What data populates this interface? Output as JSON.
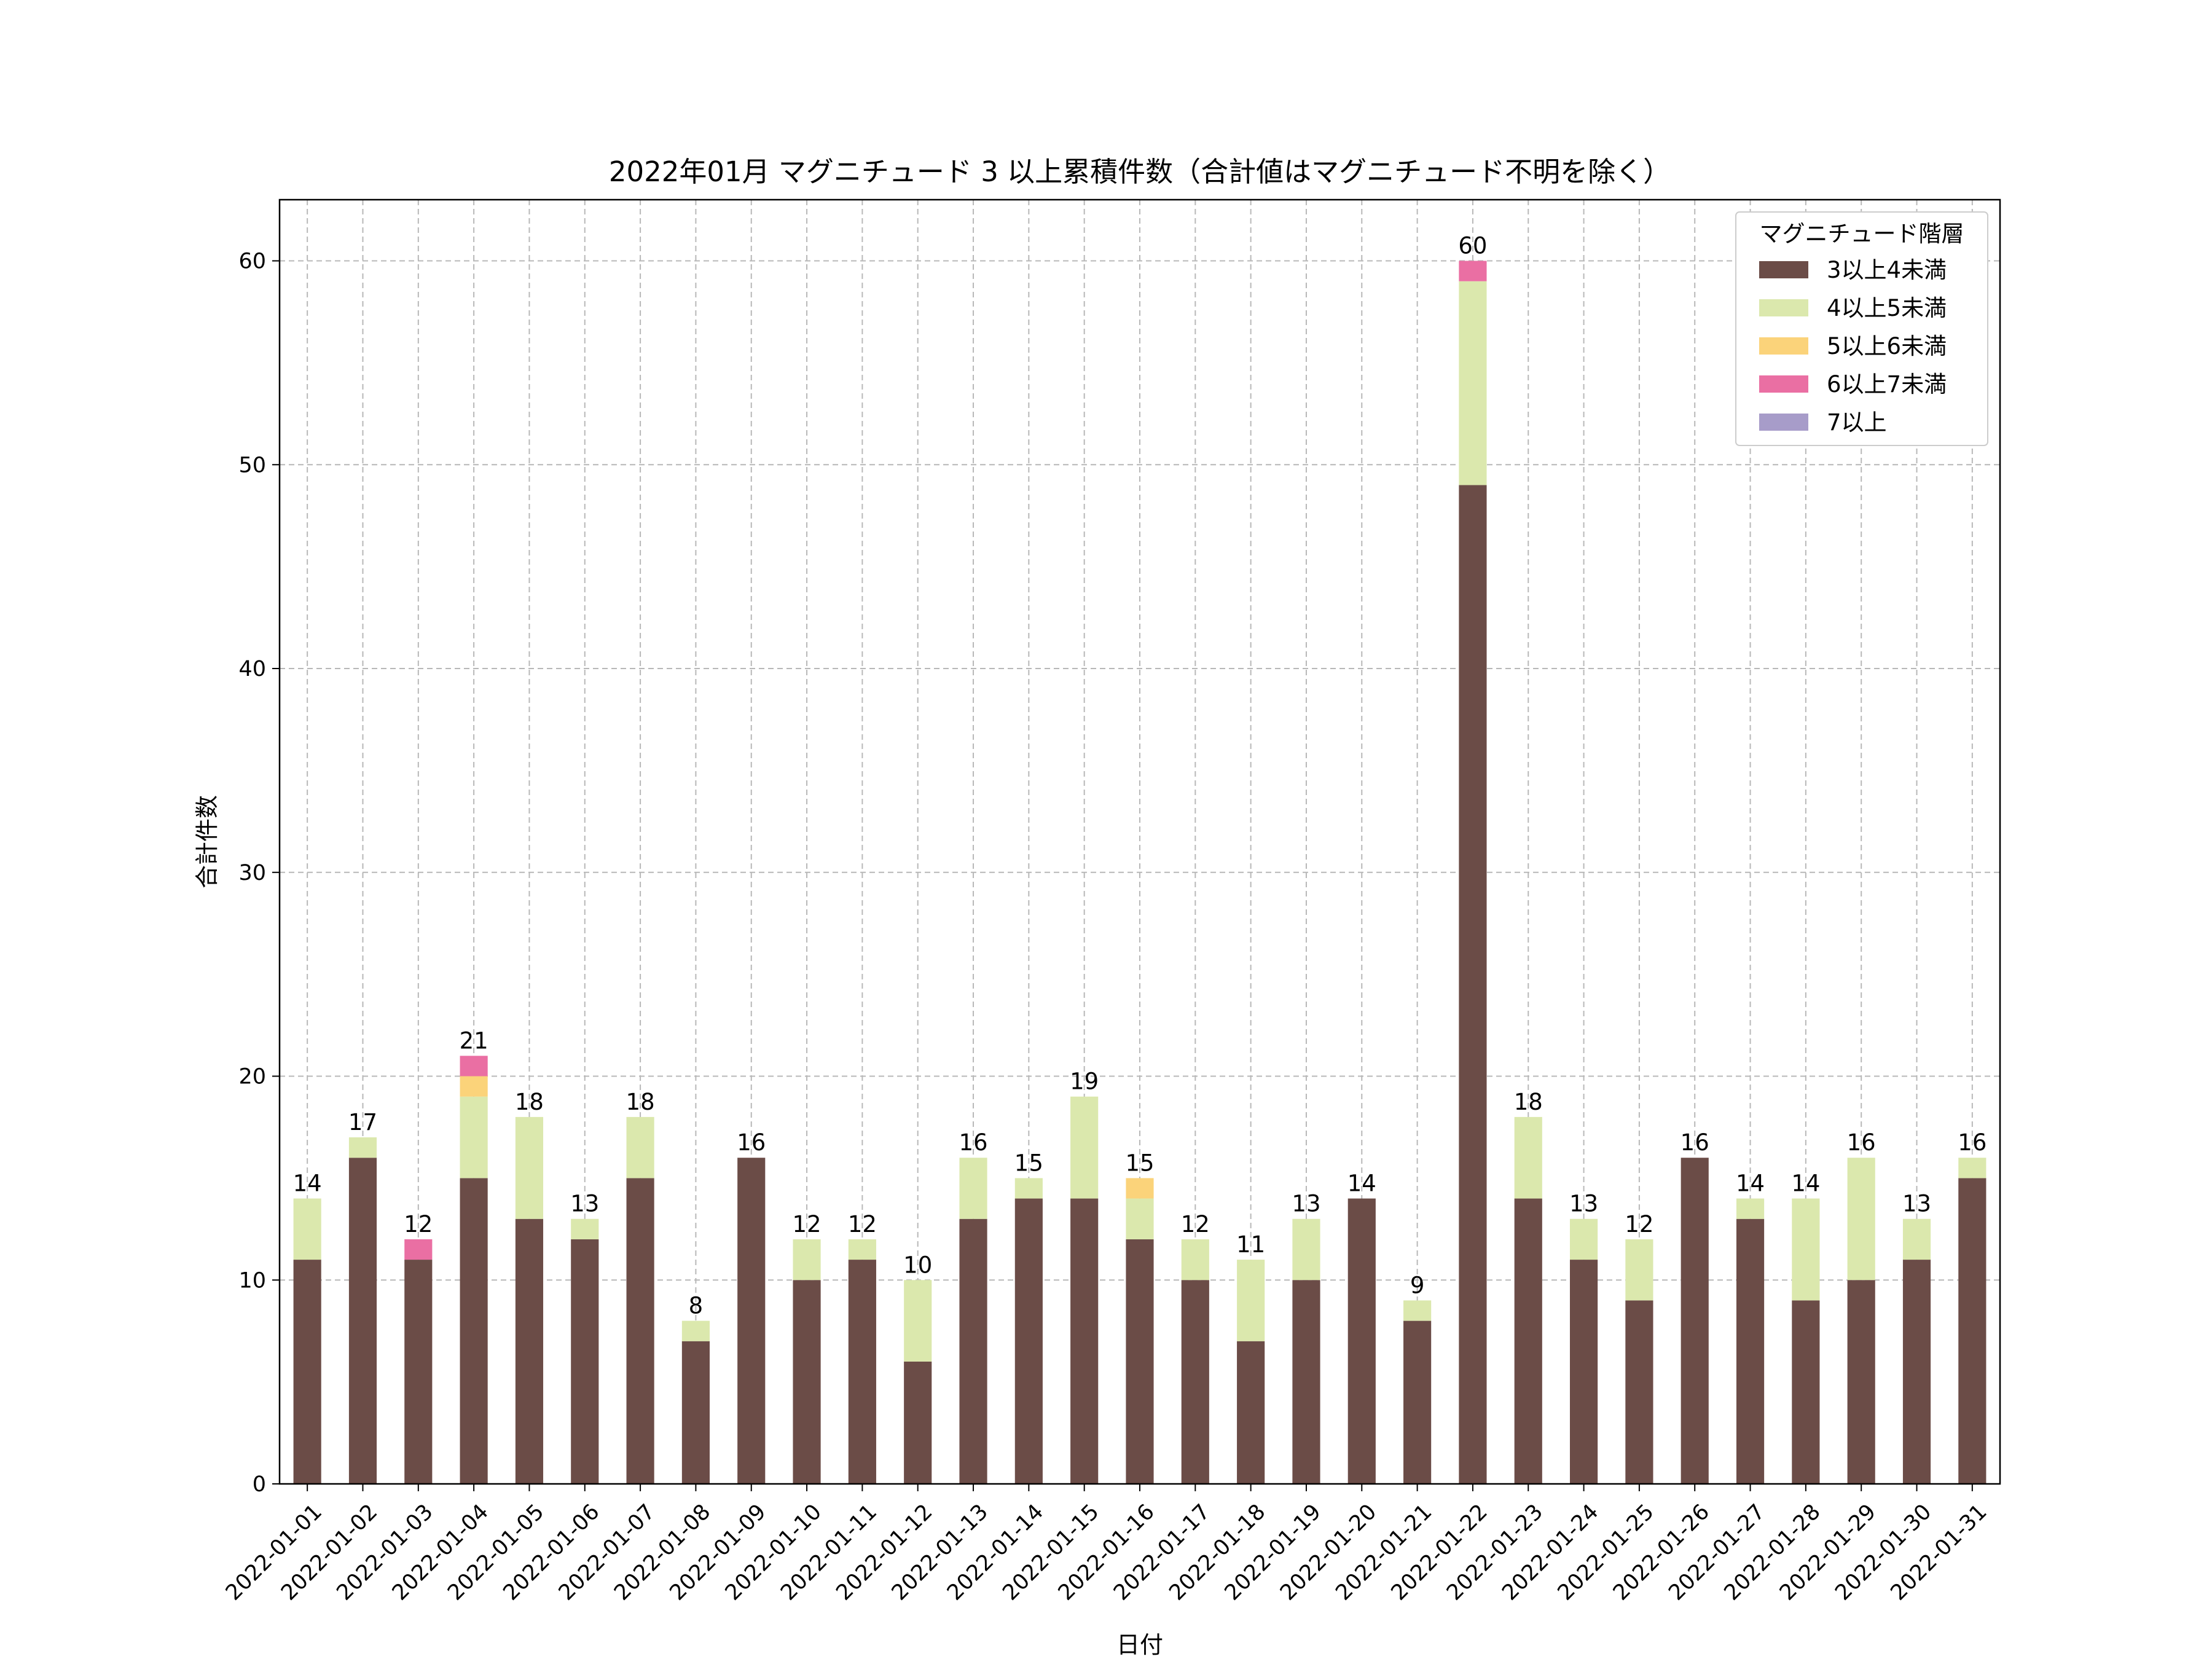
{
  "chart_data": {
    "type": "bar",
    "stacked": true,
    "title": "2022年01月 マグニチュード 3 以上累積件数（合計値はマグニチュード不明を除く）",
    "xlabel": "日付",
    "ylabel": "合計件数",
    "ylim": [
      0,
      63
    ],
    "yticks": [
      0,
      10,
      20,
      30,
      40,
      50,
      60
    ],
    "grid": true,
    "legend_title": "マグニチュード階層",
    "legend_position": "top-right",
    "categories": [
      "2022-01-01",
      "2022-01-02",
      "2022-01-03",
      "2022-01-04",
      "2022-01-05",
      "2022-01-06",
      "2022-01-07",
      "2022-01-08",
      "2022-01-09",
      "2022-01-10",
      "2022-01-11",
      "2022-01-12",
      "2022-01-13",
      "2022-01-14",
      "2022-01-15",
      "2022-01-16",
      "2022-01-17",
      "2022-01-18",
      "2022-01-19",
      "2022-01-20",
      "2022-01-21",
      "2022-01-22",
      "2022-01-23",
      "2022-01-24",
      "2022-01-25",
      "2022-01-26",
      "2022-01-27",
      "2022-01-28",
      "2022-01-29",
      "2022-01-30",
      "2022-01-31"
    ],
    "series": [
      {
        "name": "3以上4未満",
        "color": "#6b4c47",
        "values": [
          11,
          16,
          11,
          15,
          13,
          12,
          15,
          7,
          16,
          10,
          11,
          6,
          13,
          14,
          14,
          12,
          10,
          7,
          10,
          14,
          8,
          49,
          14,
          11,
          9,
          16,
          13,
          9,
          10,
          11,
          15
        ]
      },
      {
        "name": "4以上5未満",
        "color": "#dbe8ad",
        "values": [
          3,
          1,
          0,
          4,
          5,
          1,
          3,
          1,
          0,
          2,
          1,
          4,
          3,
          1,
          5,
          2,
          2,
          4,
          3,
          0,
          1,
          10,
          4,
          2,
          3,
          0,
          1,
          5,
          6,
          2,
          1
        ]
      },
      {
        "name": "5以上6未満",
        "color": "#fbd37a",
        "values": [
          0,
          0,
          0,
          1,
          0,
          0,
          0,
          0,
          0,
          0,
          0,
          0,
          0,
          0,
          0,
          1,
          0,
          0,
          0,
          0,
          0,
          0,
          0,
          0,
          0,
          0,
          0,
          0,
          0,
          0,
          0
        ]
      },
      {
        "name": "6以上7未満",
        "color": "#ea6fa3",
        "values": [
          0,
          0,
          1,
          1,
          0,
          0,
          0,
          0,
          0,
          0,
          0,
          0,
          0,
          0,
          0,
          0,
          0,
          0,
          0,
          0,
          0,
          1,
          0,
          0,
          0,
          0,
          0,
          0,
          0,
          0,
          0
        ]
      },
      {
        "name": "7以上",
        "color": "#a79cc9",
        "values": [
          0,
          0,
          0,
          0,
          0,
          0,
          0,
          0,
          0,
          0,
          0,
          0,
          0,
          0,
          0,
          0,
          0,
          0,
          0,
          0,
          0,
          0,
          0,
          0,
          0,
          0,
          0,
          0,
          0,
          0,
          0
        ]
      }
    ],
    "totals": [
      14,
      17,
      12,
      21,
      18,
      13,
      18,
      8,
      16,
      12,
      12,
      10,
      16,
      15,
      19,
      15,
      12,
      11,
      13,
      14,
      9,
      60,
      18,
      13,
      12,
      16,
      14,
      14,
      16,
      13,
      16
    ]
  }
}
